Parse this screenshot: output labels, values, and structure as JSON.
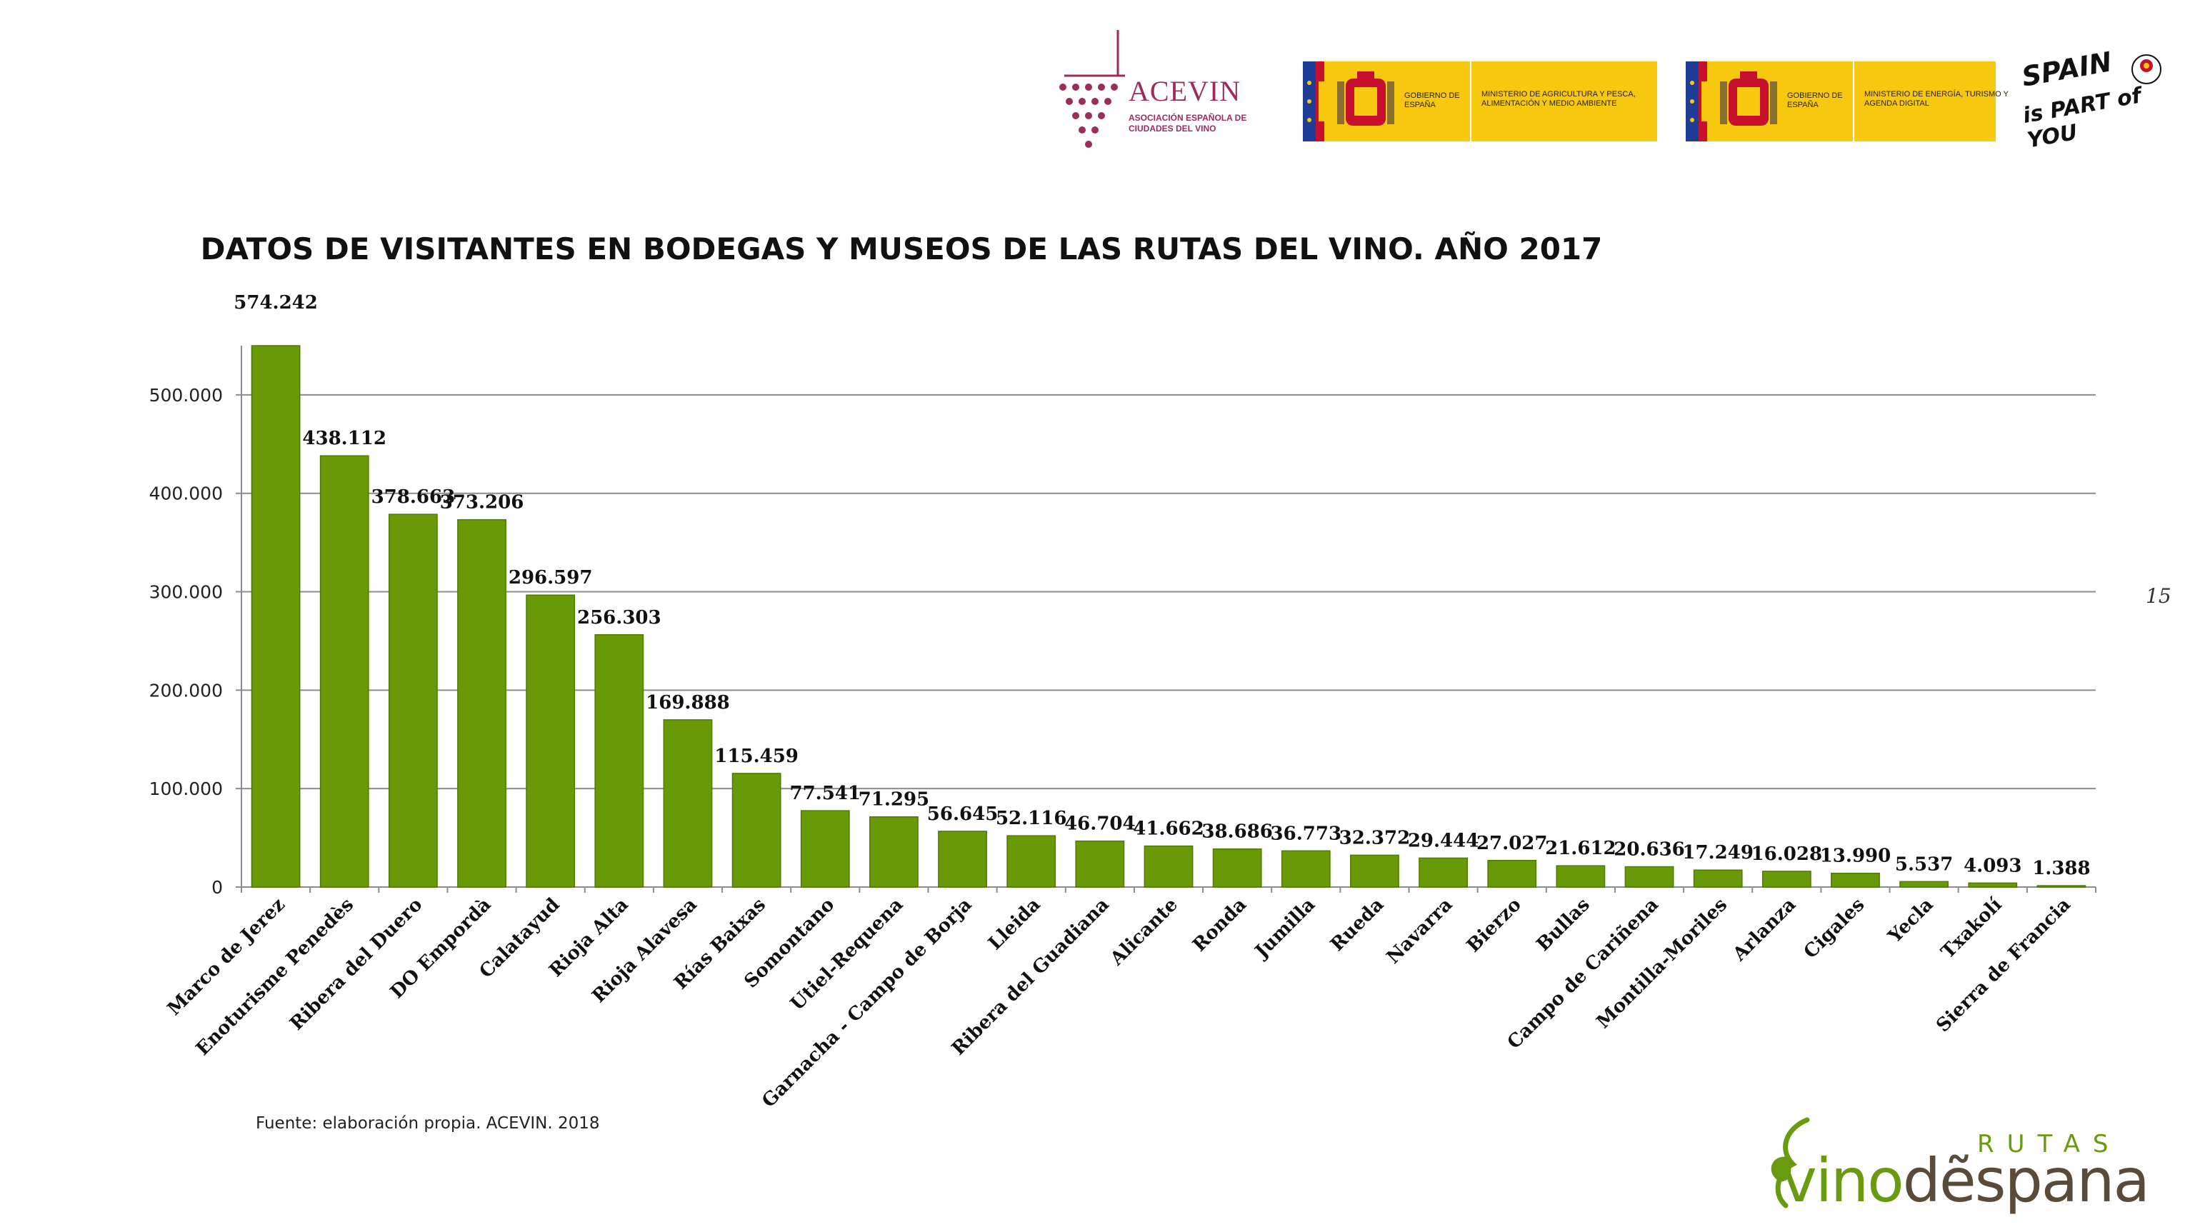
{
  "header": {
    "acevin": {
      "name": "ACEVIN",
      "subtitle": "Asociación Española de Ciudades del Vino"
    },
    "gov_logos": [
      {
        "gobierno": "Gobierno de España",
        "ministerio": "Ministerio de Agricultura y Pesca, Alimentación y Medio Ambiente"
      },
      {
        "gobierno": "Gobierno de España",
        "ministerio": "Ministerio de Energía, Turismo y Agenda Digital"
      }
    ],
    "spain_logo": {
      "line1": "SPAIN",
      "line2": "is PART of YOU"
    }
  },
  "page_number": "15",
  "source_note": "Fuente: elaboración propia. ACEVIN. 2018",
  "footer_logo": {
    "rutas": "RUTAS",
    "vino": "vino",
    "de": "d",
    "espana": "ẽspana"
  },
  "colors": {
    "bar": "#689a08",
    "bar_edge": "#4f7a03",
    "grid": "#8c8c8c",
    "acevin": "#9c2d5b",
    "gov_yellow": "#f7c810"
  },
  "chart_data": {
    "type": "bar",
    "title": "DATOS DE VISITANTES EN BODEGAS Y MUSEOS DE LAS RUTAS DEL VINO. AÑO 2017",
    "xlabel": "",
    "ylabel": "",
    "ylim": [
      0,
      550000
    ],
    "yticks": [
      0,
      100000,
      200000,
      300000,
      400000,
      500000
    ],
    "ytick_labels": [
      "0",
      "100.000",
      "200.000",
      "300.000",
      "400.000",
      "500.000"
    ],
    "grid": true,
    "legend": "none",
    "categories": [
      "Marco de Jerez",
      "Enoturisme Penedès",
      "Ribera del Duero",
      "DO Empordà",
      "Calatayud",
      "Rioja Alta",
      "Rioja Alavesa",
      "Rías Baixas",
      "Somontano",
      "Utiel-Requena",
      "Garnacha - Campo de Borja",
      "Lleida",
      "Ribera del Guadiana",
      "Alicante",
      "Ronda",
      "Jumilla",
      "Rueda",
      "Navarra",
      "Bierzo",
      "Bullas",
      "Campo de Cariñena",
      "Montilla-Moriles",
      "Arlanza",
      "Cigales",
      "Yecla",
      "Txakolí",
      "Sierra de Francia"
    ],
    "values": [
      574242,
      438112,
      378663,
      373206,
      296597,
      256303,
      169888,
      115459,
      77541,
      71295,
      56645,
      52116,
      46704,
      41662,
      38686,
      36773,
      32372,
      29444,
      27027,
      21612,
      20636,
      17249,
      16028,
      13990,
      5537,
      4093,
      1388
    ],
    "value_labels": [
      "574.242",
      "438.112",
      "378.663",
      "373.206",
      "296.597",
      "256.303",
      "169.888",
      "115.459",
      "77.541",
      "71.295",
      "56.645",
      "52.116",
      "46.704",
      "41.662",
      "38.686",
      "36.773",
      "32.372",
      "29.444",
      "27.027",
      "21.612",
      "20.636",
      "17.249",
      "16.028",
      "13.990",
      "5.537",
      "4.093",
      "1.388"
    ]
  }
}
